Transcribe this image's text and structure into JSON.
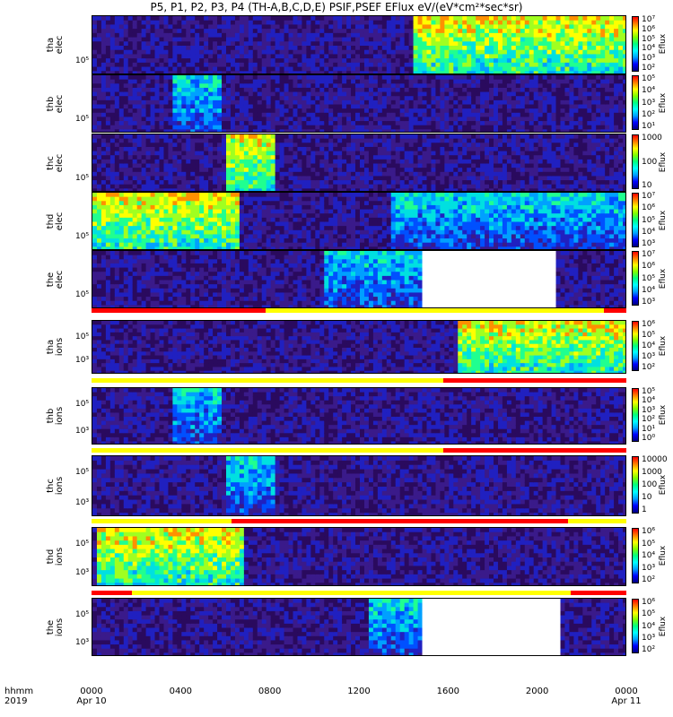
{
  "title": "P5, P1, P2, P3, P4 (TH-A,B,C,D,E) PSIF,PSEF EFlux eV/(eV*cm²*sec*sr)",
  "corner_label": {
    "line1": "hhmm",
    "line2": "2019"
  },
  "x_axis": {
    "ticks": [
      {
        "label": "0000",
        "date": "Apr 10",
        "hour": 0
      },
      {
        "label": "0400",
        "date": "",
        "hour": 4
      },
      {
        "label": "0800",
        "date": "",
        "hour": 8
      },
      {
        "label": "1200",
        "date": "",
        "hour": 12
      },
      {
        "label": "1600",
        "date": "",
        "hour": 16
      },
      {
        "label": "2000",
        "date": "",
        "hour": 20
      },
      {
        "label": "0000",
        "date": "Apr 11",
        "hour": 24
      }
    ],
    "range_hours": [
      0,
      24
    ]
  },
  "panels": [
    {
      "probe": "tha",
      "species": "elec",
      "ylabel": "10⁵",
      "cbar_unit": "Eflux",
      "cbar_ticks": [
        "10⁷",
        "10⁶",
        "10⁵",
        "10⁴",
        "10³",
        "10²"
      ]
    },
    {
      "probe": "thb",
      "species": "elec",
      "ylabel": "10⁵",
      "cbar_unit": "Eflux",
      "cbar_ticks": [
        "10⁵",
        "10⁴",
        "10³",
        "10²",
        "10¹"
      ]
    },
    {
      "probe": "thc",
      "species": "elec",
      "ylabel": "10⁵",
      "cbar_unit": "Eflux",
      "cbar_ticks": [
        "1000",
        "100",
        "10"
      ]
    },
    {
      "probe": "thd",
      "species": "elec",
      "ylabel": "10⁵",
      "cbar_unit": "Eflux",
      "cbar_ticks": [
        "10⁷",
        "10⁶",
        "10⁵",
        "10⁴",
        "10³"
      ]
    },
    {
      "probe": "the",
      "species": "elec",
      "ylabel": "10⁵",
      "cbar_unit": "Eflux",
      "cbar_ticks": [
        "10⁷",
        "10⁶",
        "10⁵",
        "10⁴",
        "10³"
      ]
    },
    {
      "probe": "tha",
      "species": "ions",
      "ylabel_top": "10⁵",
      "ylabel": "10³",
      "cbar_unit": "Eflux",
      "cbar_ticks": [
        "10⁶",
        "10⁵",
        "10⁴",
        "10³",
        "10²"
      ]
    },
    {
      "probe": "thb",
      "species": "ions",
      "ylabel_top": "10⁵",
      "ylabel": "10³",
      "cbar_unit": "Eflux",
      "cbar_ticks": [
        "10⁵",
        "10⁴",
        "10³",
        "10²",
        "10¹",
        "10⁰"
      ]
    },
    {
      "probe": "thc",
      "species": "ions",
      "ylabel_top": "10⁵",
      "ylabel": "10³",
      "cbar_unit": "Eflux",
      "cbar_ticks": [
        "10000",
        "1000",
        "100",
        "10",
        "1"
      ]
    },
    {
      "probe": "thd",
      "species": "ions",
      "ylabel_top": "10⁵",
      "ylabel": "10³",
      "cbar_unit": "Eflux",
      "cbar_ticks": [
        "10⁶",
        "10⁵",
        "10⁴",
        "10³",
        "10²"
      ]
    },
    {
      "probe": "the",
      "species": "ions",
      "ylabel_top": "10⁵",
      "ylabel": "10³",
      "cbar_unit": "Eflux",
      "cbar_ticks": [
        "10⁶",
        "10⁵",
        "10⁴",
        "10³",
        "10²"
      ]
    }
  ],
  "colors": {
    "mode_red": "#ff0000",
    "mode_yellow": "#ffff00",
    "mode_black": "#000000"
  },
  "chart_data": {
    "type": "heatmap",
    "title": "P5, P1, P2, P3, P4 (TH-A,B,C,D,E) PSIF,PSEF EFlux eV/(eV*cm²*sec*sr)",
    "xlabel": "hhmm",
    "x_range_hours": [
      0,
      24
    ],
    "mode_bars_hours": [
      [
        {
          "from": 0,
          "to": 7.8,
          "color": "red"
        },
        {
          "from": 7.8,
          "to": 23.0,
          "color": "yellow"
        },
        {
          "from": 23.0,
          "to": 24,
          "color": "red"
        }
      ],
      [
        {
          "from": 0,
          "to": 15.8,
          "color": "yellow"
        },
        {
          "from": 15.8,
          "to": 24,
          "color": "red"
        }
      ],
      [
        {
          "from": 0,
          "to": 15.8,
          "color": "yellow"
        },
        {
          "from": 15.8,
          "to": 24,
          "color": "red"
        }
      ],
      [
        {
          "from": 0,
          "to": 6.3,
          "color": "yellow"
        },
        {
          "from": 6.3,
          "to": 21.4,
          "color": "red"
        },
        {
          "from": 21.4,
          "to": 24,
          "color": "yellow"
        }
      ],
      [
        {
          "from": 0,
          "to": 1.8,
          "color": "red"
        },
        {
          "from": 1.8,
          "to": 21.5,
          "color": "yellow"
        },
        {
          "from": 21.5,
          "to": 24,
          "color": "red"
        }
      ]
    ],
    "intensity_regions_hours": [
      {
        "panel": 0,
        "from": 14.5,
        "to": 24,
        "level": "high"
      },
      {
        "panel": 1,
        "from": 3.7,
        "to": 5.8,
        "level": "medium"
      },
      {
        "panel": 2,
        "from": 6.1,
        "to": 8.2,
        "level": "high"
      },
      {
        "panel": 3,
        "from": 0,
        "to": 6.5,
        "level": "high"
      },
      {
        "panel": 3,
        "from": 13.5,
        "to": 24,
        "level": "medium"
      },
      {
        "panel": 4,
        "from": 10.5,
        "to": 14.8,
        "level": "medium"
      },
      {
        "panel": 5,
        "from": 16.5,
        "to": 24,
        "level": "high"
      },
      {
        "panel": 6,
        "from": 3.7,
        "to": 5.8,
        "level": "medium"
      },
      {
        "panel": 7,
        "from": 6.1,
        "to": 8.2,
        "level": "medium"
      },
      {
        "panel": 8,
        "from": 0.2,
        "to": 6.8,
        "level": "high"
      },
      {
        "panel": 9,
        "from": 12.5,
        "to": 14.8,
        "level": "medium"
      }
    ],
    "data_gaps_hours": [
      {
        "panel": 4,
        "from": 14.8,
        "to": 20.8
      },
      {
        "panel": 9,
        "from": 14.8,
        "to": 20.9
      }
    ]
  }
}
